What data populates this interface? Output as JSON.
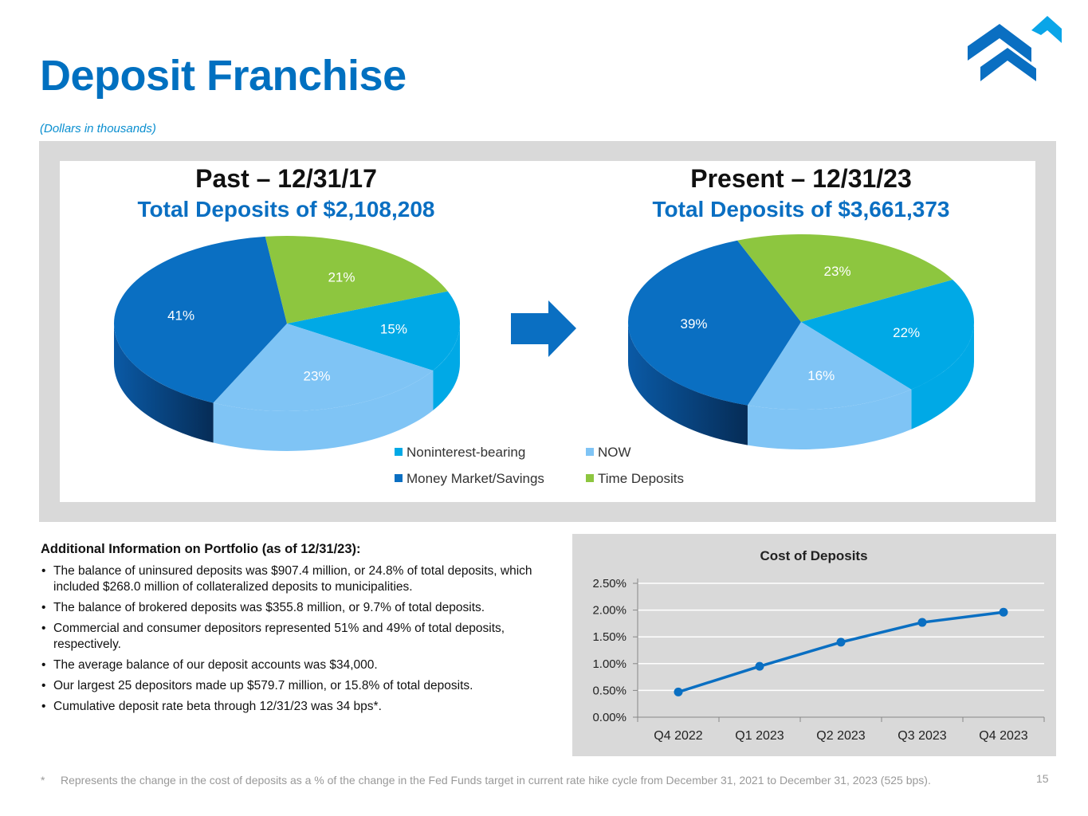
{
  "header": {
    "title": "Deposit Franchise",
    "subtitle": "(Dollars in thousands)"
  },
  "logo": {
    "name": "company-logo",
    "colors": [
      "#0a6fc2",
      "#0aa5e8"
    ]
  },
  "pies": {
    "past": {
      "heading": "Past – 12/31/17",
      "total": "Total Deposits of $2,108,208"
    },
    "present": {
      "heading": "Present – 12/31/23",
      "total": "Total Deposits of $3,661,373"
    }
  },
  "legend": {
    "items": [
      {
        "label": "Noninterest-bearing",
        "color": "#00a9e6"
      },
      {
        "label": "NOW",
        "color": "#7fc4f5"
      },
      {
        "label": "Money Market/Savings",
        "color": "#0a6fc2"
      },
      {
        "label": "Time Deposits",
        "color": "#8dc63f"
      }
    ]
  },
  "info": {
    "heading": "Additional Information on Portfolio (as of 12/31/23):",
    "bullets": [
      "The balance of uninsured deposits was $907.4 million, or 24.8% of total deposits, which included $268.0 million of collateralized deposits to municipalities.",
      "The balance of brokered deposits was $355.8 million, or 9.7% of total deposits.",
      "Commercial and consumer depositors represented 51% and 49% of total deposits, respectively.",
      "The average balance of our deposit accounts was $34,000.",
      "Our largest 25 depositors made up $579.7 million, or 15.8% of total deposits.",
      "Cumulative deposit rate beta through 12/31/23 was 34 bps*."
    ]
  },
  "footnote": {
    "marker": "*",
    "text": "Represents the change in the cost of deposits as a % of the change in the Fed Funds target in current rate hike cycle from December 31, 2021 to December 31, 2023 (525 bps)."
  },
  "page_number": "15",
  "chart_data": [
    {
      "type": "pie",
      "title": "Past – 12/31/17",
      "subtitle": "Total Deposits of $2,108,208",
      "categories": [
        "Noninterest-bearing",
        "NOW",
        "Money Market/Savings",
        "Time Deposits"
      ],
      "values": [
        15,
        23,
        41,
        21
      ],
      "labels": [
        "15%",
        "23%",
        "41%",
        "21%"
      ],
      "colors": [
        "#00a9e6",
        "#7fc4f5",
        "#0a6fc2",
        "#8dc63f"
      ]
    },
    {
      "type": "pie",
      "title": "Present – 12/31/23",
      "subtitle": "Total Deposits of $3,661,373",
      "categories": [
        "Noninterest-bearing",
        "NOW",
        "Money Market/Savings",
        "Time Deposits"
      ],
      "values": [
        22,
        16,
        39,
        23
      ],
      "labels": [
        "22%",
        "16%",
        "39%",
        "23%"
      ],
      "colors": [
        "#00a9e6",
        "#7fc4f5",
        "#0a6fc2",
        "#8dc63f"
      ]
    },
    {
      "type": "line",
      "title": "Cost of Deposits",
      "categories": [
        "Q4 2022",
        "Q1 2023",
        "Q2 2023",
        "Q3 2023",
        "Q4 2023"
      ],
      "series": [
        {
          "name": "Cost of Deposits",
          "values": [
            0.47,
            0.95,
            1.4,
            1.77,
            1.96
          ]
        }
      ],
      "ylim": [
        0,
        2.5
      ],
      "yticks": [
        0,
        0.5,
        1.0,
        1.5,
        2.0,
        2.5
      ],
      "ytick_labels": [
        "0.00%",
        "0.50%",
        "1.00%",
        "1.50%",
        "2.00%",
        "2.50%"
      ],
      "grid": true,
      "color": "#0a6fc2"
    }
  ]
}
